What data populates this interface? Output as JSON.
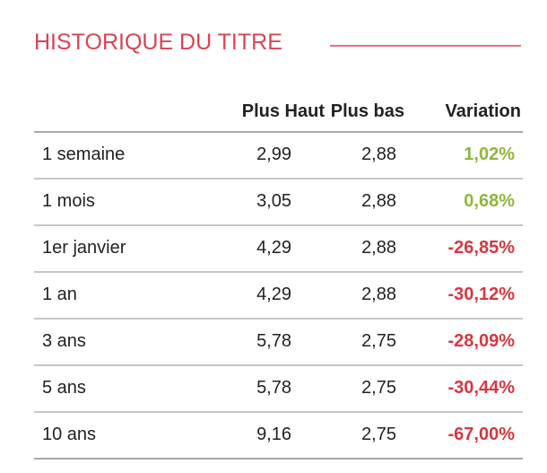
{
  "header": {
    "title": "HISTORIQUE DU TITRE"
  },
  "colors": {
    "accent": "#d94452",
    "positive": "#8fb63b",
    "negative": "#d9363f",
    "rule": "#a8a8a8"
  },
  "table": {
    "columns": [
      "Plus Haut",
      "Plus bas",
      "Variation"
    ],
    "rows": [
      {
        "period": "1 semaine",
        "high": "2,99",
        "low": "2,88",
        "variation": "1,02%",
        "trend": "positive"
      },
      {
        "period": "1 mois",
        "high": "3,05",
        "low": "2,88",
        "variation": "0,68%",
        "trend": "positive"
      },
      {
        "period": "1er janvier",
        "high": "4,29",
        "low": "2,88",
        "variation": "-26,85%",
        "trend": "negative"
      },
      {
        "period": "1 an",
        "high": "4,29",
        "low": "2,88",
        "variation": "-30,12%",
        "trend": "negative"
      },
      {
        "period": "3 ans",
        "high": "5,78",
        "low": "2,75",
        "variation": "-28,09%",
        "trend": "negative"
      },
      {
        "period": "5 ans",
        "high": "5,78",
        "low": "2,75",
        "variation": "-30,44%",
        "trend": "negative"
      },
      {
        "period": "10 ans",
        "high": "9,16",
        "low": "2,75",
        "variation": "-67,00%",
        "trend": "negative"
      }
    ]
  }
}
